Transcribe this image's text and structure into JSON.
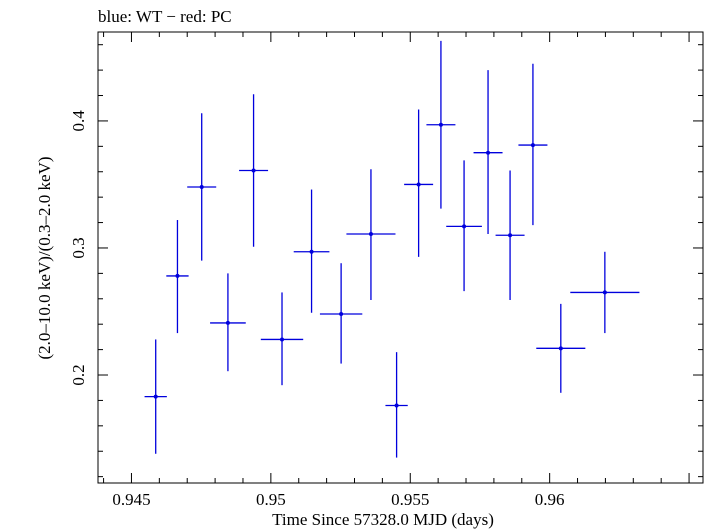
{
  "chart_data": {
    "type": "scatter",
    "title": "blue: WT − red: PC",
    "xlabel": "Time Since 57328.0 MJD (days)",
    "ylabel": "(2.0–10.0 keV)/(0.3–2.0 keV)",
    "xlim": [
      0.9438,
      0.9655
    ],
    "ylim": [
      0.115,
      0.47
    ],
    "x_ticks": [
      "0.945",
      "0.95",
      "0.955",
      "0.96"
    ],
    "x_tick_values": [
      0.945,
      0.95,
      0.955,
      0.96
    ],
    "y_ticks": [
      "0.2",
      "0.3",
      "0.4"
    ],
    "y_tick_values": [
      0.2,
      0.3,
      0.4
    ],
    "grid": false,
    "color": "#0000dd",
    "series": [
      {
        "points": [
          {
            "x": 0.94587,
            "xerr": 0.0004,
            "y": 0.183,
            "ylo": 0.138,
            "yhi": 0.228
          },
          {
            "x": 0.94665,
            "xerr": 0.0004,
            "y": 0.278,
            "ylo": 0.233,
            "yhi": 0.322
          },
          {
            "x": 0.94752,
            "xerr": 0.00052,
            "y": 0.348,
            "ylo": 0.29,
            "yhi": 0.406
          },
          {
            "x": 0.94846,
            "xerr": 0.00064,
            "y": 0.241,
            "ylo": 0.203,
            "yhi": 0.28
          },
          {
            "x": 0.94938,
            "xerr": 0.00052,
            "y": 0.361,
            "ylo": 0.301,
            "yhi": 0.421
          },
          {
            "x": 0.9504,
            "xerr": 0.00076,
            "y": 0.228,
            "ylo": 0.192,
            "yhi": 0.265
          },
          {
            "x": 0.95146,
            "xerr": 0.00064,
            "y": 0.297,
            "ylo": 0.249,
            "yhi": 0.346
          },
          {
            "x": 0.95252,
            "xerr": 0.00076,
            "y": 0.248,
            "ylo": 0.209,
            "yhi": 0.288
          },
          {
            "x": 0.95359,
            "xerr": 0.00088,
            "y": 0.311,
            "ylo": 0.259,
            "yhi": 0.362
          },
          {
            "x": 0.95451,
            "xerr": 0.0004,
            "y": 0.176,
            "ylo": 0.135,
            "yhi": 0.218
          },
          {
            "x": 0.9553,
            "xerr": 0.00052,
            "y": 0.35,
            "ylo": 0.293,
            "yhi": 0.409
          },
          {
            "x": 0.9561,
            "xerr": 0.00052,
            "y": 0.397,
            "ylo": 0.331,
            "yhi": 0.463
          },
          {
            "x": 0.95693,
            "xerr": 0.00064,
            "y": 0.317,
            "ylo": 0.266,
            "yhi": 0.369
          },
          {
            "x": 0.95779,
            "xerr": 0.00052,
            "y": 0.375,
            "ylo": 0.311,
            "yhi": 0.44
          },
          {
            "x": 0.95858,
            "xerr": 0.00052,
            "y": 0.31,
            "ylo": 0.259,
            "yhi": 0.361
          },
          {
            "x": 0.9594,
            "xerr": 0.00052,
            "y": 0.381,
            "ylo": 0.318,
            "yhi": 0.445
          },
          {
            "x": 0.9604,
            "xerr": 0.00088,
            "y": 0.221,
            "ylo": 0.186,
            "yhi": 0.256
          },
          {
            "x": 0.96198,
            "xerr": 0.00124,
            "y": 0.265,
            "ylo": 0.233,
            "yhi": 0.297
          }
        ]
      }
    ]
  }
}
